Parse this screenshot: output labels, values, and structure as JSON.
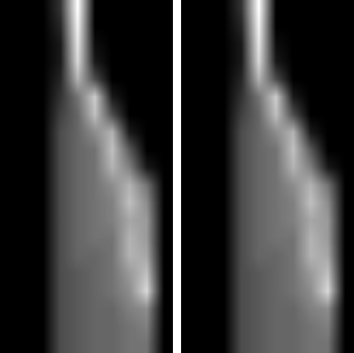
{
  "chart_data": [
    {
      "type": "heatmap",
      "tick_labels": false,
      "value_range": [
        0,
        100
      ],
      "cells": [
        [
          0,
          0,
          0,
          20,
          100,
          0,
          0,
          0,
          0,
          0
        ],
        [
          0,
          0,
          0,
          15,
          95,
          0,
          0,
          0,
          0,
          0
        ],
        [
          0,
          0,
          0,
          10,
          90,
          5,
          0,
          0,
          0,
          0
        ],
        [
          0,
          0,
          0,
          10,
          85,
          10,
          0,
          0,
          0,
          0
        ],
        [
          0,
          0,
          0,
          15,
          70,
          30,
          0,
          0,
          0,
          0
        ],
        [
          0,
          0,
          0,
          20,
          45,
          80,
          10,
          0,
          0,
          0
        ],
        [
          0,
          0,
          0,
          25,
          40,
          75,
          30,
          0,
          0,
          0
        ],
        [
          0,
          0,
          0,
          30,
          40,
          55,
          70,
          10,
          0,
          0
        ],
        [
          0,
          0,
          0,
          30,
          40,
          45,
          75,
          35,
          0,
          0
        ],
        [
          0,
          0,
          0,
          30,
          40,
          45,
          70,
          50,
          10,
          0
        ],
        [
          0,
          0,
          0,
          30,
          40,
          45,
          55,
          70,
          45,
          0
        ],
        [
          0,
          0,
          0,
          30,
          40,
          45,
          50,
          75,
          55,
          0
        ],
        [
          0,
          0,
          0,
          30,
          40,
          45,
          50,
          65,
          60,
          0
        ],
        [
          0,
          0,
          0,
          30,
          40,
          45,
          45,
          70,
          60,
          0
        ],
        [
          0,
          0,
          0,
          30,
          40,
          40,
          45,
          70,
          65,
          0
        ],
        [
          0,
          0,
          0,
          30,
          35,
          40,
          45,
          60,
          75,
          0
        ],
        [
          0,
          0,
          0,
          30,
          35,
          40,
          45,
          55,
          85,
          0
        ],
        [
          0,
          0,
          0,
          30,
          35,
          40,
          40,
          50,
          55,
          0
        ],
        [
          0,
          0,
          0,
          30,
          35,
          40,
          40,
          45,
          50,
          0
        ],
        [
          0,
          0,
          0,
          30,
          35,
          40,
          40,
          45,
          45,
          0
        ]
      ]
    },
    {
      "type": "heatmap",
      "tick_labels": false,
      "value_range": [
        0,
        100
      ],
      "cells": [
        [
          0,
          0,
          0,
          20,
          100,
          0,
          0,
          0,
          0,
          0
        ],
        [
          0,
          0,
          0,
          15,
          95,
          0,
          0,
          0,
          0,
          0
        ],
        [
          0,
          0,
          0,
          10,
          90,
          5,
          0,
          0,
          0,
          0
        ],
        [
          0,
          0,
          0,
          10,
          85,
          10,
          0,
          0,
          0,
          0
        ],
        [
          0,
          0,
          0,
          15,
          70,
          30,
          0,
          0,
          0,
          0
        ],
        [
          0,
          0,
          0,
          20,
          45,
          80,
          10,
          0,
          0,
          0
        ],
        [
          0,
          0,
          0,
          25,
          40,
          75,
          30,
          0,
          0,
          0
        ],
        [
          0,
          0,
          0,
          30,
          40,
          55,
          70,
          10,
          0,
          0
        ],
        [
          0,
          0,
          0,
          30,
          40,
          45,
          75,
          35,
          0,
          0
        ],
        [
          0,
          0,
          0,
          30,
          40,
          45,
          70,
          50,
          10,
          0
        ],
        [
          0,
          0,
          0,
          30,
          40,
          45,
          55,
          70,
          45,
          0
        ],
        [
          0,
          0,
          0,
          30,
          40,
          45,
          50,
          75,
          55,
          0
        ],
        [
          0,
          0,
          0,
          30,
          40,
          45,
          50,
          65,
          60,
          0
        ],
        [
          0,
          0,
          0,
          30,
          40,
          45,
          45,
          70,
          60,
          0
        ],
        [
          0,
          0,
          0,
          30,
          40,
          40,
          45,
          70,
          65,
          0
        ],
        [
          0,
          0,
          0,
          30,
          35,
          40,
          45,
          60,
          75,
          0
        ],
        [
          0,
          0,
          0,
          30,
          35,
          40,
          45,
          55,
          85,
          0
        ],
        [
          0,
          0,
          0,
          30,
          35,
          40,
          40,
          50,
          55,
          0
        ],
        [
          0,
          0,
          0,
          30,
          35,
          40,
          40,
          45,
          50,
          0
        ],
        [
          0,
          0,
          0,
          30,
          35,
          40,
          40,
          45,
          45,
          0
        ]
      ]
    }
  ]
}
